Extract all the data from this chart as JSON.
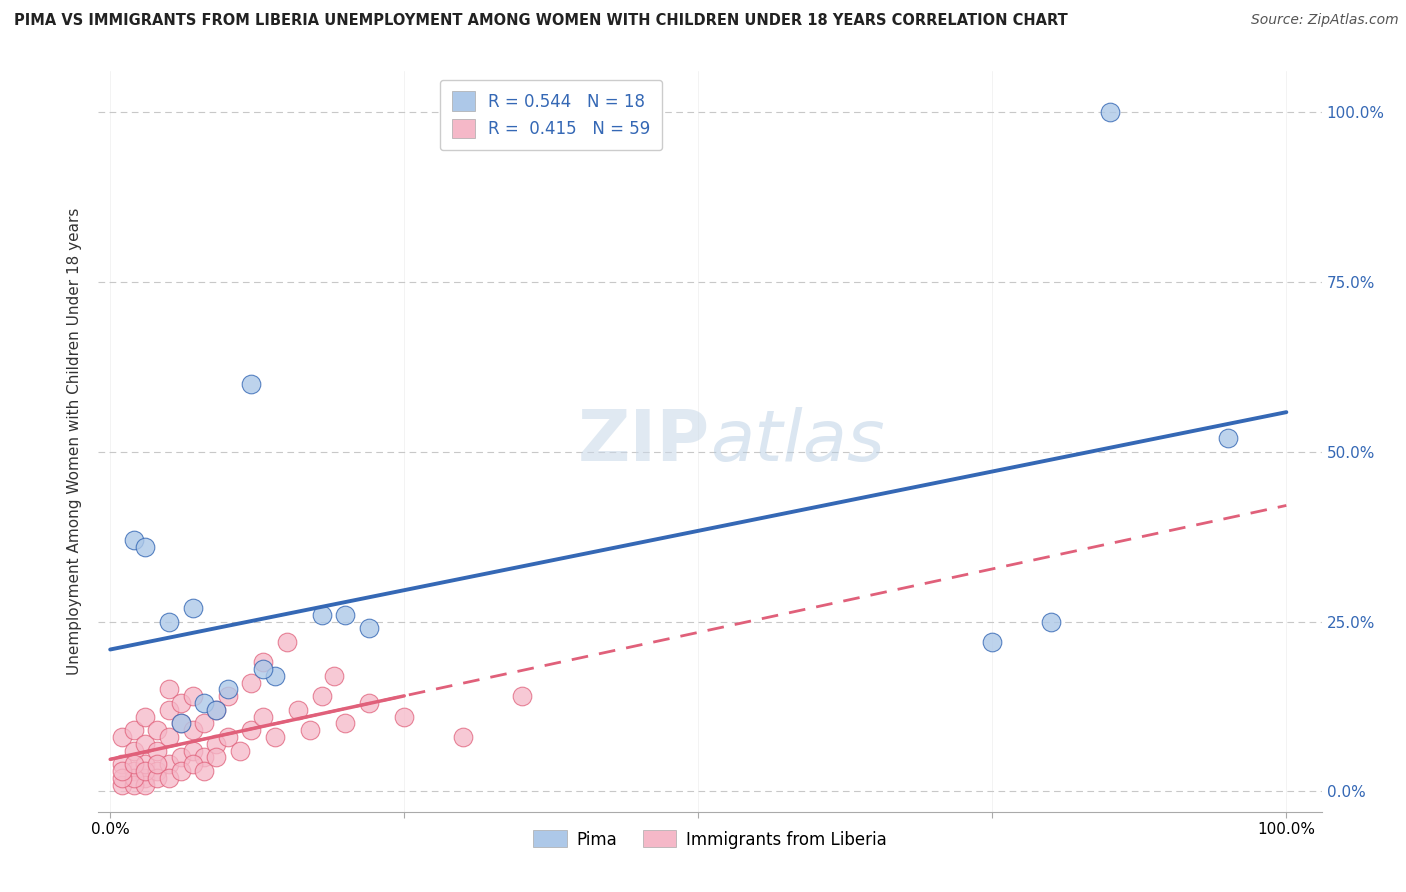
{
  "title": "PIMA VS IMMIGRANTS FROM LIBERIA UNEMPLOYMENT AMONG WOMEN WITH CHILDREN UNDER 18 YEARS CORRELATION CHART",
  "source": "Source: ZipAtlas.com",
  "ylabel": "Unemployment Among Women with Children Under 18 years",
  "x_tick_labels": [
    "0.0%",
    "",
    "",
    "",
    "100.0%"
  ],
  "x_tick_values": [
    0,
    25,
    50,
    75,
    100
  ],
  "y_tick_values": [
    0,
    25,
    50,
    75,
    100
  ],
  "y_tick_labels_right": [
    "0.0%",
    "25.0%",
    "50.0%",
    "75.0%",
    "100.0%"
  ],
  "legend_label_pima": "R = 0.544   N = 18",
  "legend_label_lib": "R =  0.415   N = 59",
  "legend_bottom": [
    "Pima",
    "Immigrants from Liberia"
  ],
  "pima_color": "#adc8e8",
  "liberia_color": "#f5b8c8",
  "pima_line_color": "#3568b5",
  "liberia_line_color": "#e0607a",
  "background_color": "#ffffff",
  "grid_color": "#c8c8c8",
  "pima_points": [
    [
      2,
      37
    ],
    [
      5,
      25
    ],
    [
      7,
      27
    ],
    [
      8,
      13
    ],
    [
      10,
      15
    ],
    [
      12,
      60
    ],
    [
      14,
      17
    ],
    [
      18,
      26
    ],
    [
      20,
      26
    ],
    [
      85,
      100
    ],
    [
      75,
      22
    ],
    [
      80,
      25
    ],
    [
      95,
      52
    ],
    [
      6,
      10
    ],
    [
      9,
      12
    ],
    [
      13,
      18
    ],
    [
      22,
      24
    ],
    [
      3,
      36
    ]
  ],
  "liberia_points": [
    [
      1,
      8
    ],
    [
      1,
      4
    ],
    [
      2,
      3
    ],
    [
      2,
      6
    ],
    [
      2,
      9
    ],
    [
      3,
      2
    ],
    [
      3,
      4
    ],
    [
      3,
      7
    ],
    [
      3,
      11
    ],
    [
      4,
      3
    ],
    [
      4,
      6
    ],
    [
      4,
      9
    ],
    [
      5,
      4
    ],
    [
      5,
      8
    ],
    [
      5,
      12
    ],
    [
      5,
      15
    ],
    [
      6,
      5
    ],
    [
      6,
      10
    ],
    [
      6,
      13
    ],
    [
      7,
      6
    ],
    [
      7,
      9
    ],
    [
      7,
      14
    ],
    [
      8,
      5
    ],
    [
      8,
      10
    ],
    [
      9,
      7
    ],
    [
      9,
      12
    ],
    [
      10,
      8
    ],
    [
      10,
      14
    ],
    [
      11,
      6
    ],
    [
      12,
      9
    ],
    [
      12,
      16
    ],
    [
      13,
      11
    ],
    [
      13,
      19
    ],
    [
      14,
      8
    ],
    [
      15,
      22
    ],
    [
      16,
      12
    ],
    [
      17,
      9
    ],
    [
      18,
      14
    ],
    [
      19,
      17
    ],
    [
      20,
      10
    ],
    [
      22,
      13
    ],
    [
      25,
      11
    ],
    [
      30,
      8
    ],
    [
      35,
      14
    ],
    [
      1,
      1
    ],
    [
      2,
      1
    ],
    [
      3,
      1
    ],
    [
      2,
      2
    ],
    [
      1,
      2
    ],
    [
      1,
      3
    ],
    [
      2,
      4
    ],
    [
      3,
      3
    ],
    [
      4,
      2
    ],
    [
      4,
      4
    ],
    [
      5,
      2
    ],
    [
      6,
      3
    ],
    [
      7,
      4
    ],
    [
      8,
      3
    ],
    [
      9,
      5
    ]
  ],
  "title_fontsize": 10.5,
  "axis_label_fontsize": 11,
  "tick_fontsize": 11,
  "source_fontsize": 10
}
